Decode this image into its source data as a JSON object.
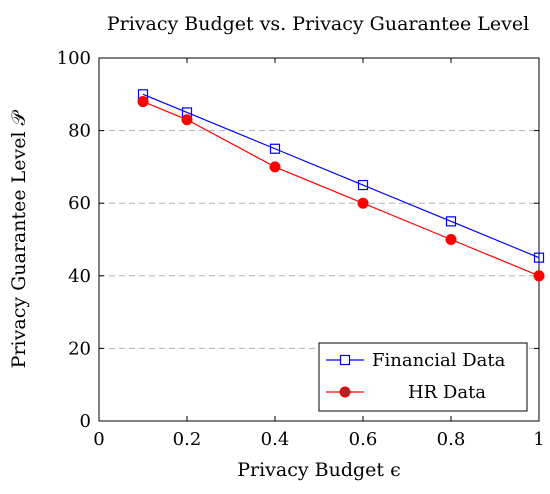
{
  "chart_data": {
    "type": "line",
    "title": "Privacy Budget vs. Privacy Guarantee Level",
    "xlabel": "Privacy Budget ϵ",
    "ylabel": "Privacy Guarantee Level 𝒫",
    "xlim": [
      0,
      1
    ],
    "ylim": [
      0,
      100
    ],
    "xticks": [
      0,
      0.2,
      0.4,
      0.6,
      0.8,
      1
    ],
    "xtick_labels": [
      "0",
      "0.2",
      "0.4",
      "0.6",
      "0.8",
      "1"
    ],
    "yticks": [
      0,
      20,
      40,
      60,
      80,
      100
    ],
    "ytick_labels": [
      "0",
      "20",
      "40",
      "60",
      "80",
      "100"
    ],
    "grid": "horizontal dashed",
    "legend_position": "bottom-right",
    "series": [
      {
        "name": "Financial Data",
        "color": "#0000ff",
        "marker": "open-square",
        "x": [
          0.1,
          0.2,
          0.4,
          0.6,
          0.8,
          1.0
        ],
        "y": [
          90,
          85,
          75,
          65,
          55,
          45
        ]
      },
      {
        "name": "HR Data",
        "color": "#ff0000",
        "marker_fill": "#b22222",
        "marker": "filled-circle",
        "x": [
          0.1,
          0.2,
          0.4,
          0.6,
          0.8,
          1.0
        ],
        "y": [
          88,
          83,
          70,
          60,
          50,
          40
        ]
      }
    ]
  }
}
